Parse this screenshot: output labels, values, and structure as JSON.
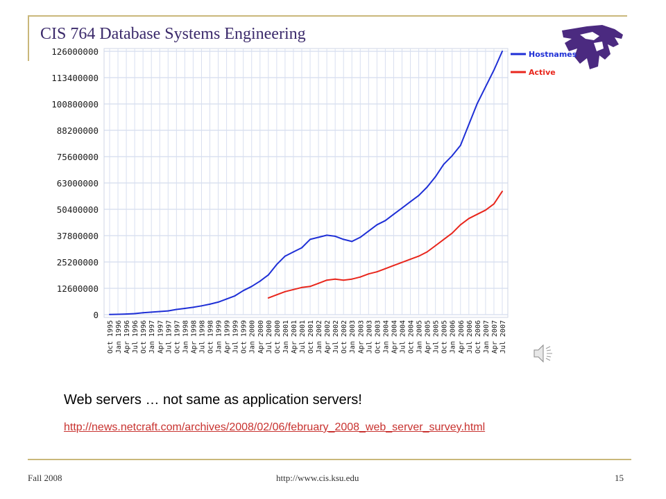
{
  "slide": {
    "title": "CIS 764 Database Systems Engineering",
    "caption": "Web servers   … not same as application servers!",
    "link_text": "http://news.netcraft.com/archives/2008/02/06/february_2008_web_server_survey.html",
    "footer_left": "Fall 2008",
    "footer_center": "http://www.cis.ksu.edu",
    "footer_right": "15"
  },
  "icons": {
    "logo": "ksu-wildcat-logo-icon",
    "speaker": "speaker-icon"
  },
  "colors": {
    "frame": "#c9b77a",
    "title": "#3b2a6b",
    "hostnames": "#1e2fd6",
    "active": "#e8261c",
    "link": "#c8322f",
    "logo": "#4b2a80"
  },
  "chart_data": {
    "type": "line",
    "title": "",
    "xlabel": "",
    "ylabel": "",
    "ylim": [
      0,
      126000000
    ],
    "yticks": [
      0,
      12600000,
      25200000,
      37800000,
      50400000,
      63000000,
      75600000,
      88200000,
      100800000,
      113400000,
      126000000
    ],
    "grid": true,
    "legend": "top-right",
    "x": [
      "Oct 1995",
      "Jan 1996",
      "Apr 1996",
      "Jul 1996",
      "Oct 1996",
      "Jan 1997",
      "Apr 1997",
      "Jul 1997",
      "Oct 1997",
      "Jan 1998",
      "Apr 1998",
      "Jul 1998",
      "Oct 1998",
      "Jan 1999",
      "Apr 1999",
      "Jul 1999",
      "Oct 1999",
      "Jan 2000",
      "Apr 2000",
      "Jul 2000",
      "Oct 2000",
      "Jan 2001",
      "Apr 2001",
      "Jul 2001",
      "Oct 2001",
      "Jan 2002",
      "Apr 2002",
      "Jul 2002",
      "Oct 2002",
      "Jan 2003",
      "Apr 2003",
      "Jul 2003",
      "Oct 2003",
      "Jan 2004",
      "Apr 2004",
      "Jul 2004",
      "Oct 2004",
      "Jan 2005",
      "Apr 2005",
      "Jul 2005",
      "Oct 2005",
      "Jan 2006",
      "Apr 2006",
      "Jul 2006",
      "Oct 2006",
      "Jan 2007",
      "Apr 2007",
      "Jul 2007"
    ],
    "series": [
      {
        "name": "Hostnames",
        "values": [
          100000,
          150000,
          300000,
          500000,
          900000,
          1200000,
          1500000,
          1800000,
          2500000,
          3000000,
          3500000,
          4200000,
          5000000,
          6000000,
          7500000,
          9000000,
          11500000,
          13500000,
          16000000,
          19000000,
          24000000,
          28000000,
          30000000,
          32000000,
          36000000,
          37000000,
          38000000,
          37500000,
          36000000,
          35000000,
          37000000,
          40000000,
          43000000,
          45000000,
          48000000,
          51000000,
          54000000,
          57000000,
          61000000,
          66000000,
          72000000,
          76000000,
          81000000,
          91000000,
          101000000,
          109000000,
          117000000,
          126000000
        ]
      },
      {
        "name": "Active",
        "values": [
          null,
          null,
          null,
          null,
          null,
          null,
          null,
          null,
          null,
          null,
          null,
          null,
          null,
          null,
          null,
          null,
          null,
          null,
          null,
          8000000,
          9500000,
          11000000,
          12000000,
          13000000,
          13500000,
          15000000,
          16500000,
          17000000,
          16500000,
          17000000,
          18000000,
          19500000,
          20500000,
          22000000,
          23500000,
          25000000,
          26500000,
          28000000,
          30000000,
          33000000,
          36000000,
          39000000,
          43000000,
          46000000,
          48000000,
          50000000,
          53000000,
          59000000
        ]
      }
    ]
  }
}
